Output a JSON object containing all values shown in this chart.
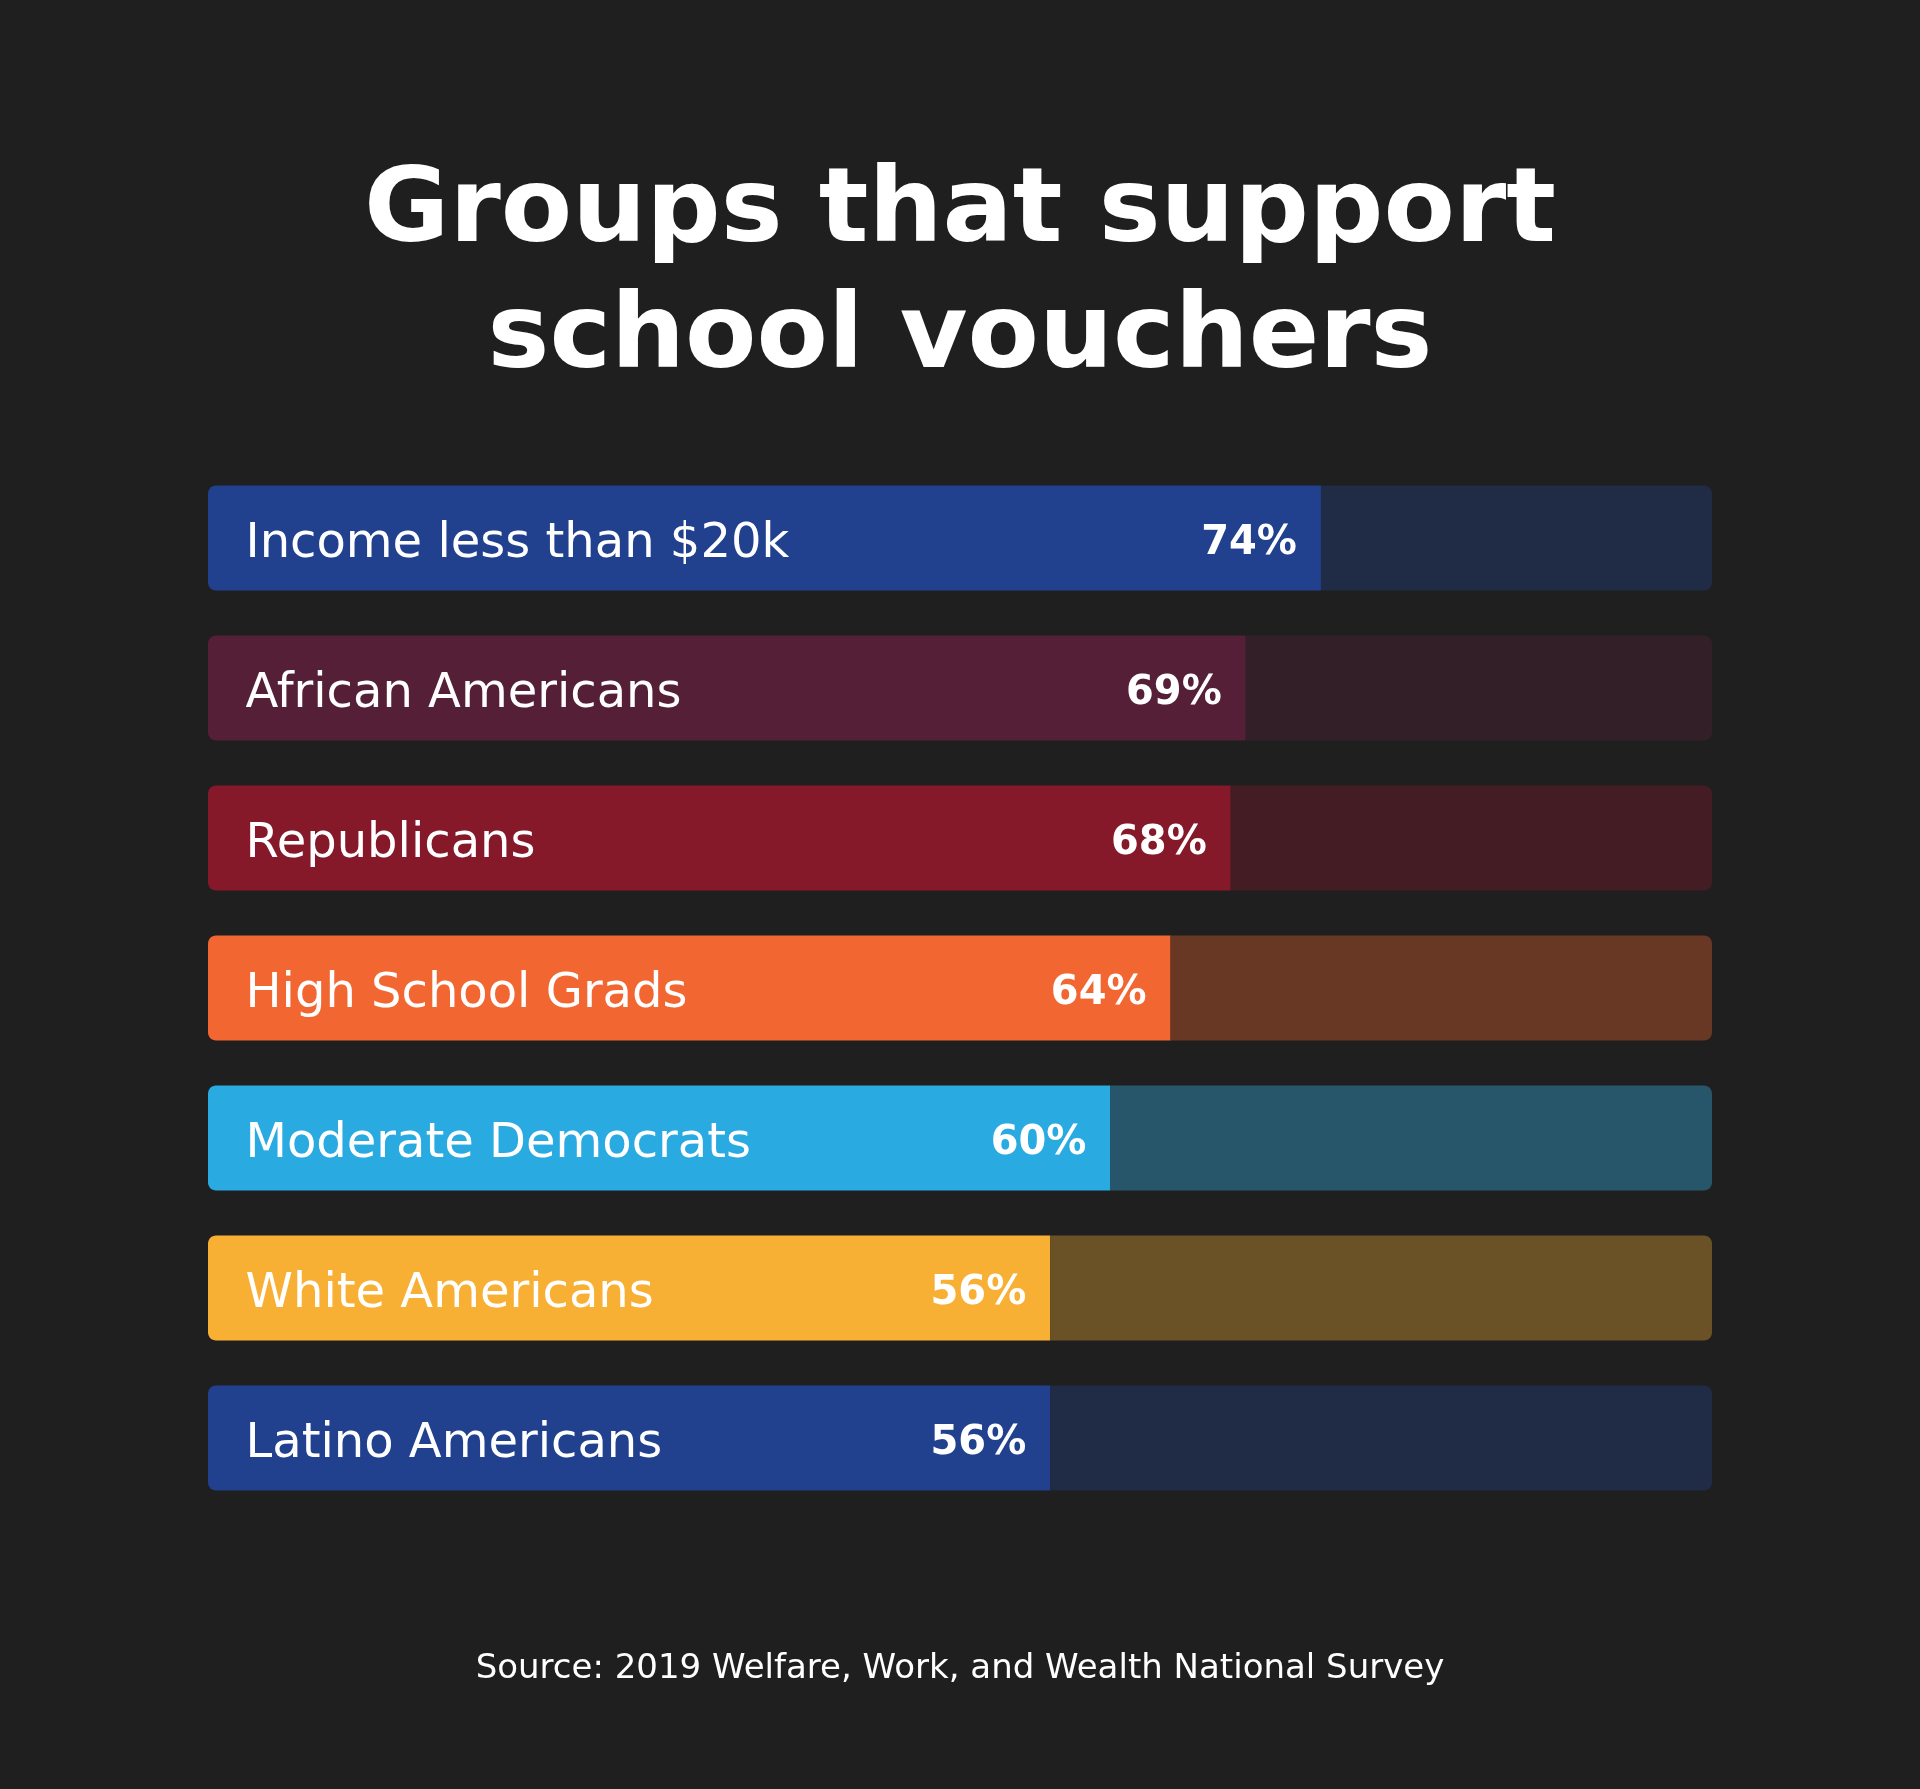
{
  "chart_data": {
    "type": "bar",
    "orientation": "horizontal",
    "stacked": true,
    "title": "Groups that support school vouchers",
    "categories": [
      "Income less than $20k",
      "African Americans",
      "Republicans",
      "High School Grads",
      "Moderate Democrats",
      "White Americans",
      "Latino Americans"
    ],
    "series": [
      {
        "values": [
          74,
          69,
          68,
          64,
          60,
          56,
          56
        ],
        "colors": [
          "#21418f",
          "#551f38",
          "#85192a",
          "#f26631",
          "#29aae1",
          "#f8b034",
          "#21418f"
        ],
        "value_labels": [
          "74%",
          "69%",
          "68%",
          "64%",
          "60%",
          "56%",
          "56%"
        ]
      },
      {
        "values": [
          26,
          31,
          32,
          36,
          40,
          44,
          44
        ],
        "colors": [
          "#202b46",
          "#321f28",
          "#431d23",
          "#693825",
          "#27566a",
          "#6b5226",
          "#202b46"
        ]
      }
    ],
    "xlim": [
      0,
      100
    ],
    "tick_labels": "y",
    "grid": false,
    "annotations": [
      "Source: 2019 Welfare, Work, and Wealth National Survey"
    ]
  }
}
